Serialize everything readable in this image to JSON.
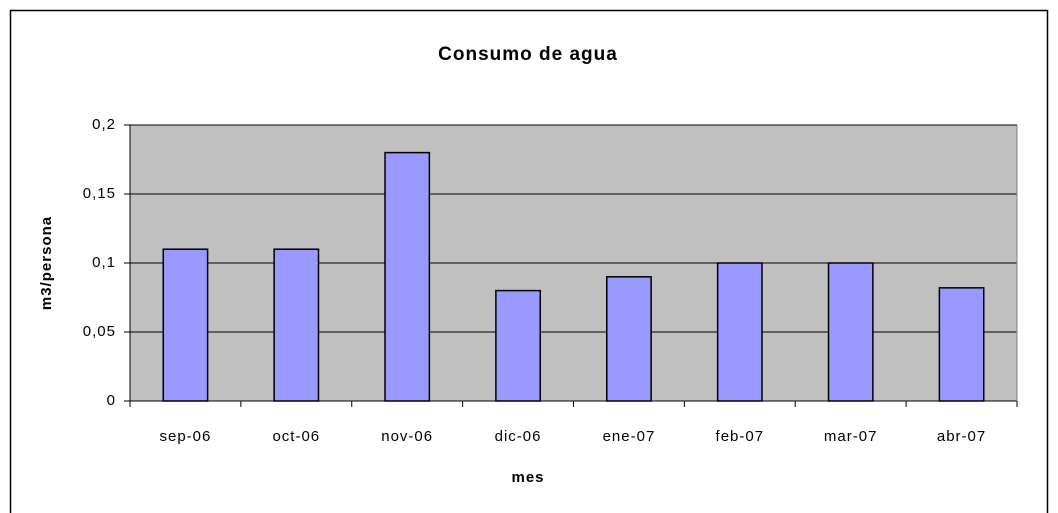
{
  "chart_data": {
    "type": "bar",
    "title": "Consumo de agua",
    "x_label": "mes",
    "y_label": "m3/persona",
    "categories": [
      "sep-06",
      "oct-06",
      "nov-06",
      "dic-06",
      "ene-07",
      "feb-07",
      "mar-07",
      "abr-07"
    ],
    "values": [
      0.11,
      0.11,
      0.18,
      0.08,
      0.09,
      0.1,
      0.1,
      0.082
    ],
    "color": "#9999ff",
    "ylim": [
      0,
      0.2
    ],
    "yticks": [
      0,
      {
        "value": 0.05,
        "label": "0,05"
      },
      {
        "value": 0.1,
        "label": "0,1"
      },
      {
        "value": 0.15,
        "label": "0,15"
      },
      {
        "value": 0.2,
        "label": "0,2"
      }
    ],
    "grid": true
  }
}
